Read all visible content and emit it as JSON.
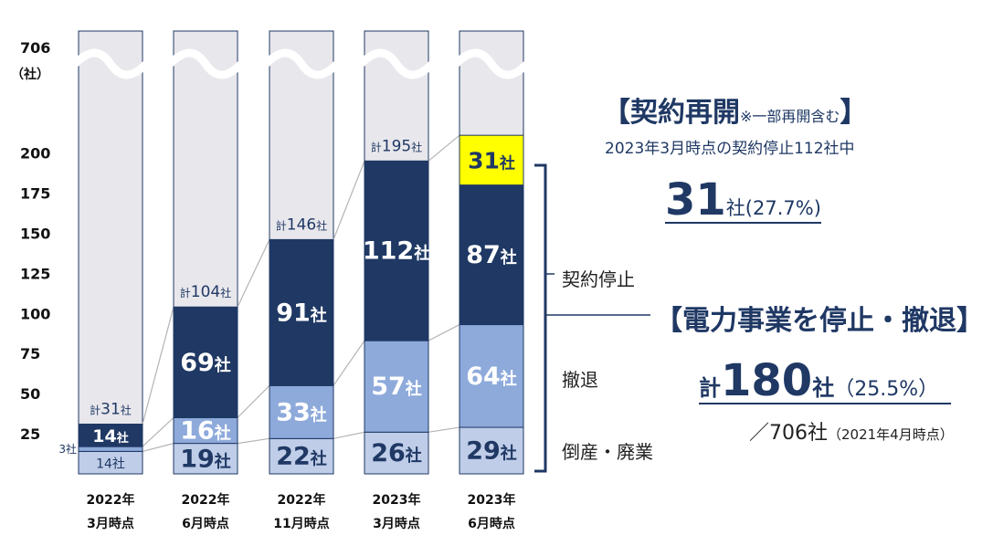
{
  "chart_data": {
    "type": "bar",
    "stacked": true,
    "y_axis_break": true,
    "y_top_label": "706",
    "y_unit": "（社）",
    "yticks": [
      25,
      50,
      75,
      100,
      125,
      150,
      175,
      200
    ],
    "ylim": [
      0,
      200
    ],
    "y_total": 706,
    "categories": [
      {
        "year": "2022年",
        "month": "3月時点"
      },
      {
        "year": "2022年",
        "month": "6月時点"
      },
      {
        "year": "2022年",
        "month": "11月時点"
      },
      {
        "year": "2023年",
        "month": "3月時点"
      },
      {
        "year": "2023年",
        "month": "6月時点"
      }
    ],
    "series": [
      {
        "key": "bankrupt",
        "name": "倒産・廃業",
        "color": "#bfcde8",
        "values": [
          14,
          19,
          22,
          26,
          29
        ],
        "labels": [
          "14社",
          "19社",
          "22社",
          "26社",
          "29社"
        ]
      },
      {
        "key": "withdraw",
        "name": "撤退",
        "color": "#8eaadb",
        "values": [
          3,
          16,
          33,
          57,
          64
        ],
        "labels": [
          "3社",
          "16社",
          "33社",
          "57社",
          "64社"
        ]
      },
      {
        "key": "suspend",
        "name": "契約停止",
        "color": "#1f3864",
        "values": [
          14,
          69,
          91,
          112,
          87
        ],
        "labels": [
          "14社",
          "69社",
          "91社",
          "112社",
          "87社"
        ]
      },
      {
        "key": "resume",
        "name": "契約再開",
        "color": "#ffff00",
        "values": [
          0,
          0,
          0,
          0,
          31
        ],
        "labels": [
          "",
          "",
          "",
          "",
          "31社"
        ]
      }
    ],
    "totals": [
      {
        "kei": "計",
        "num": "31",
        "sha": "社"
      },
      {
        "kei": "計",
        "num": "104",
        "sha": "社"
      },
      {
        "kei": "計",
        "num": "146",
        "sha": "社"
      },
      {
        "kei": "計",
        "num": "195",
        "sha": "社"
      },
      null
    ],
    "colors": {
      "background_column": "#e8e7ec",
      "column_border": "#1f3864",
      "connector": "#b4b4b4",
      "text": "#1f3864"
    }
  },
  "annotations": {
    "resume": {
      "title_open": "【契約再開",
      "title_note": "※一部再開含む",
      "title_close": "】",
      "sub": "2023年3月時点の契約停止112社中",
      "count_num": "31",
      "count_rest": "社(27.7%)"
    },
    "legend_suspend": "契約停止",
    "legend_withdraw": "撤退",
    "legend_bankrupt": "倒産・廃業",
    "exit": {
      "title": "【電力事業を停止・撤退】",
      "kei": "計",
      "num": "180",
      "sha": "社",
      "pct": "（25.5%）",
      "denom": "／706社",
      "denom_note": "（2021年4月時点）"
    }
  }
}
